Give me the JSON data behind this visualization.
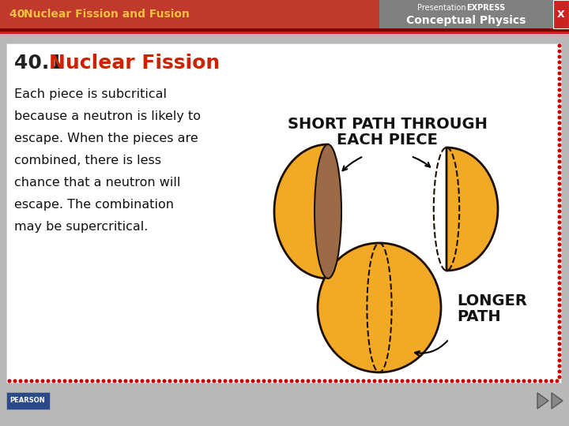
{
  "header_bg": "#c0392b",
  "header_text_color": "#f0c040",
  "logo_bg": "#808080",
  "footer_bg": "#b8b8b8",
  "border_color": "#cc0000",
  "title_number": "40.1 ",
  "title_text": "Nuclear Fission",
  "title_number_color": "#222222",
  "title_text_color": "#cc2200",
  "body_text_lines": [
    "Each piece is subcritical",
    "because a neutron is likely to",
    "escape. When the pieces are",
    "combined, there is less",
    "chance that a neutron will",
    "escape. The combination",
    "may be supercritical."
  ],
  "body_text_color": "#111111",
  "diagram_label1_line1": "SHORT PATH THROUGH",
  "diagram_label1_line2": "EACH PIECE",
  "diagram_label2_line1": "LONGER",
  "diagram_label2_line2": "PATH",
  "orange_fill": "#f2a925",
  "orange_edge": "#1a0f00",
  "brown_fill": "#9b6b47",
  "white": "#ffffff",
  "slide_border": "#dddddd",
  "header_num_color": "#f0c040",
  "header_title_color": "#f0c040",
  "x_btn_color": "#cc2222"
}
